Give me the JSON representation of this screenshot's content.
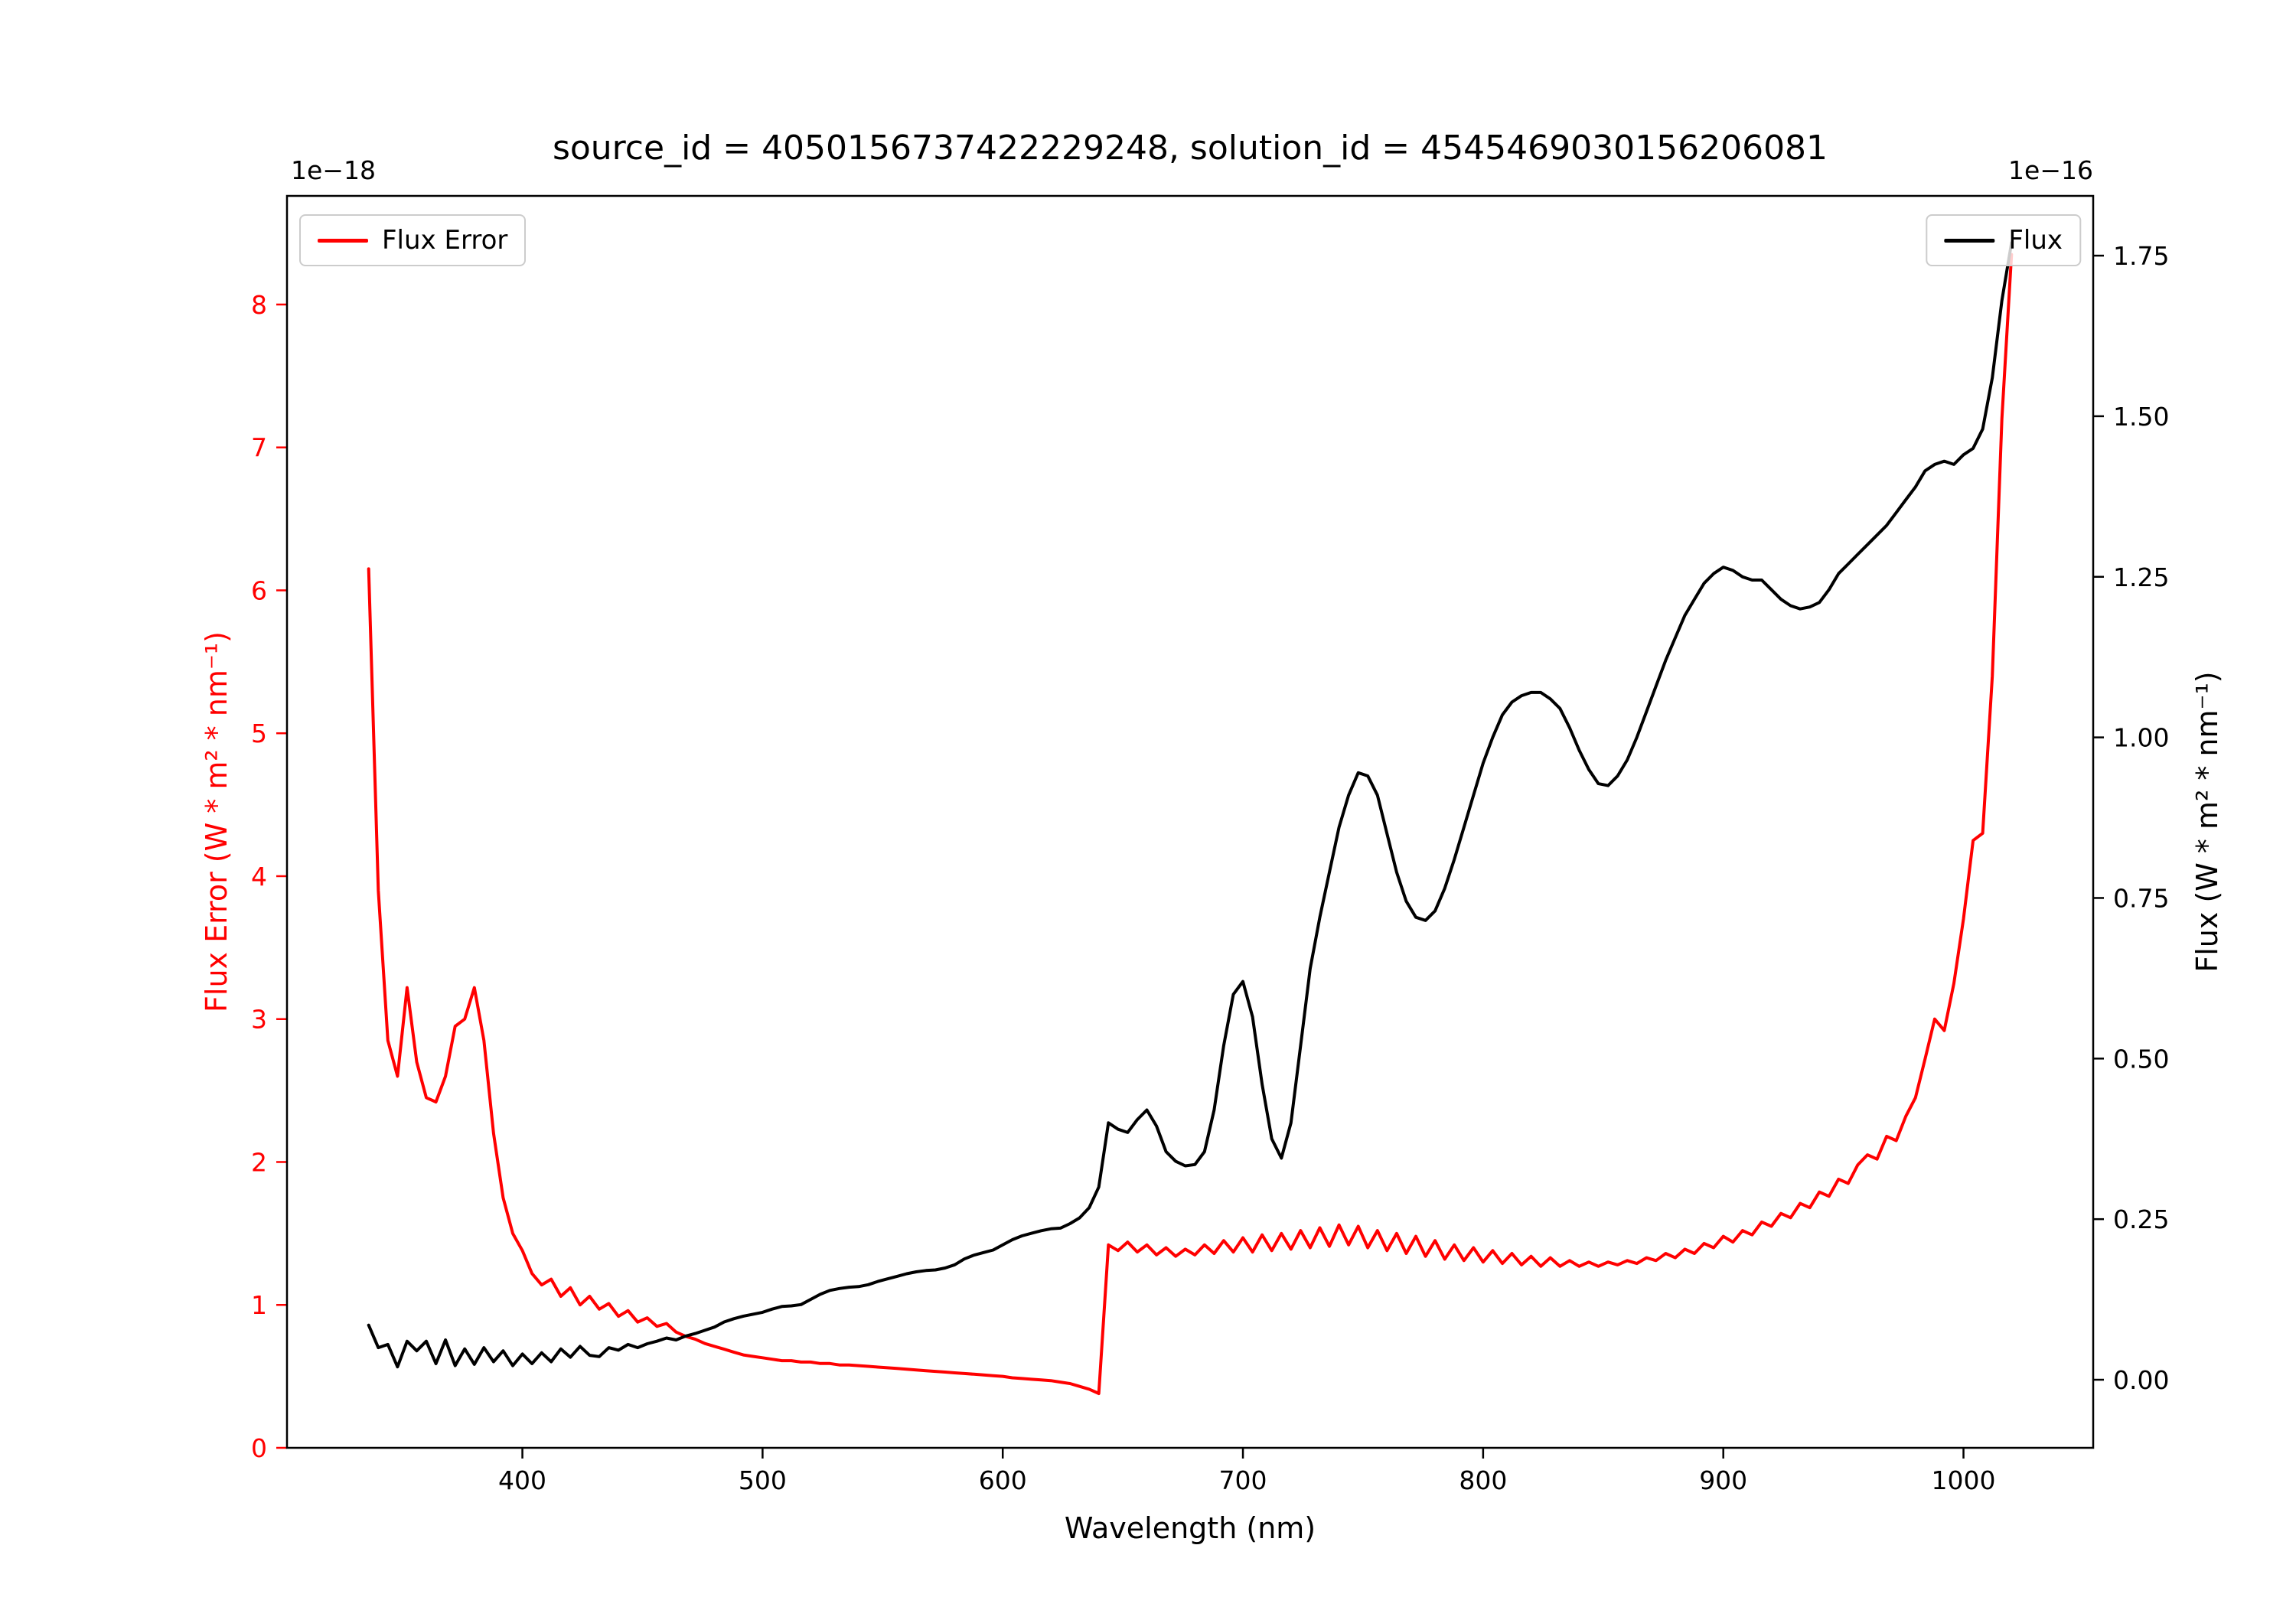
{
  "figure": {
    "title": "source_id = 4050156737422229248, solution_id = 4545469030156206081",
    "xlabel": "Wavelength (nm)",
    "y_left_label": "Flux Error (W * m² * nm⁻¹)",
    "y_right_label": "Flux (W * m² * nm⁻¹)",
    "offset_left": "1e−18",
    "offset_right": "1e−16",
    "legend_left": "Flux Error",
    "legend_right": "Flux"
  },
  "colors": {
    "flux_error": "#ff0000",
    "flux": "#000000",
    "spine": "#000000",
    "legend_border": "#cccccc"
  },
  "chart_data": {
    "type": "line",
    "title": "source_id = 4050156737422229248, solution_id = 4545469030156206081",
    "xlabel": "Wavelength (nm)",
    "legend_position": {
      "flux_error": "upper left",
      "flux": "upper right"
    },
    "grid": false,
    "x_axis": {
      "range": [
        302,
        1054
      ],
      "tick_values": [
        400,
        500,
        600,
        700,
        800,
        900,
        1000
      ],
      "tick_labels": [
        "400",
        "500",
        "600",
        "700",
        "800",
        "900",
        "1000"
      ]
    },
    "y_left": {
      "label": "Flux Error (W * m² * nm⁻¹)",
      "scale_note": "1e−18",
      "color": "#ff0000",
      "range": [
        0,
        8.76
      ],
      "tick_values": [
        0,
        1,
        2,
        3,
        4,
        5,
        6,
        7,
        8
      ],
      "tick_labels": [
        "0",
        "1",
        "2",
        "3",
        "4",
        "5",
        "6",
        "7",
        "8"
      ]
    },
    "y_right": {
      "label": "Flux (W * m² * nm⁻¹)",
      "scale_note": "1e−16",
      "color": "#000000",
      "range": [
        -0.106,
        1.843
      ],
      "tick_values": [
        0,
        0.25,
        0.5,
        0.75,
        1.0,
        1.25,
        1.5,
        1.75
      ],
      "tick_labels": [
        "0.00",
        "0.25",
        "0.50",
        "0.75",
        "1.00",
        "1.25",
        "1.50",
        "1.75"
      ]
    },
    "x": [
      336,
      340,
      344,
      348,
      352,
      356,
      360,
      364,
      368,
      372,
      376,
      380,
      384,
      388,
      392,
      396,
      400,
      404,
      408,
      412,
      416,
      420,
      424,
      428,
      432,
      436,
      440,
      444,
      448,
      452,
      456,
      460,
      464,
      468,
      472,
      476,
      480,
      484,
      488,
      492,
      496,
      500,
      504,
      508,
      512,
      516,
      520,
      524,
      528,
      532,
      536,
      540,
      544,
      548,
      552,
      556,
      560,
      564,
      568,
      572,
      576,
      580,
      584,
      588,
      592,
      596,
      600,
      604,
      608,
      612,
      616,
      620,
      624,
      628,
      632,
      636,
      640,
      644,
      648,
      652,
      656,
      660,
      664,
      668,
      672,
      676,
      680,
      684,
      688,
      692,
      696,
      700,
      704,
      708,
      712,
      716,
      720,
      724,
      728,
      732,
      736,
      740,
      744,
      748,
      752,
      756,
      760,
      764,
      768,
      772,
      776,
      780,
      784,
      788,
      792,
      796,
      800,
      804,
      808,
      812,
      816,
      820,
      824,
      828,
      832,
      836,
      840,
      844,
      848,
      852,
      856,
      860,
      864,
      868,
      872,
      876,
      880,
      884,
      888,
      892,
      896,
      900,
      904,
      908,
      912,
      916,
      920,
      924,
      928,
      932,
      936,
      940,
      944,
      948,
      952,
      956,
      960,
      964,
      968,
      972,
      976,
      980,
      984,
      988,
      992,
      996,
      1000,
      1004,
      1008,
      1012,
      1016,
      1020
    ],
    "series": [
      {
        "name": "Flux Error",
        "axis": "left",
        "color": "#ff0000",
        "unit": "1e-18 W * m^2 * nm^-1",
        "values": [
          6.15,
          3.9,
          2.85,
          2.6,
          3.22,
          2.7,
          2.45,
          2.42,
          2.6,
          2.95,
          3.0,
          3.22,
          2.85,
          2.2,
          1.75,
          1.5,
          1.38,
          1.22,
          1.14,
          1.18,
          1.06,
          1.12,
          1.0,
          1.06,
          0.97,
          1.01,
          0.92,
          0.96,
          0.88,
          0.91,
          0.85,
          0.87,
          0.81,
          0.78,
          0.76,
          0.73,
          0.71,
          0.69,
          0.67,
          0.65,
          0.64,
          0.63,
          0.62,
          0.61,
          0.61,
          0.6,
          0.6,
          0.59,
          0.59,
          0.58,
          0.58,
          0.575,
          0.57,
          0.565,
          0.56,
          0.555,
          0.55,
          0.545,
          0.54,
          0.535,
          0.53,
          0.525,
          0.52,
          0.515,
          0.51,
          0.505,
          0.5,
          0.49,
          0.485,
          0.48,
          0.475,
          0.47,
          0.46,
          0.45,
          0.43,
          0.41,
          0.38,
          1.42,
          1.38,
          1.44,
          1.37,
          1.42,
          1.35,
          1.4,
          1.34,
          1.39,
          1.35,
          1.42,
          1.36,
          1.45,
          1.37,
          1.47,
          1.37,
          1.49,
          1.38,
          1.5,
          1.39,
          1.52,
          1.4,
          1.54,
          1.41,
          1.56,
          1.42,
          1.55,
          1.4,
          1.52,
          1.38,
          1.5,
          1.36,
          1.48,
          1.34,
          1.45,
          1.32,
          1.42,
          1.31,
          1.4,
          1.3,
          1.38,
          1.29,
          1.36,
          1.28,
          1.34,
          1.27,
          1.33,
          1.27,
          1.31,
          1.27,
          1.3,
          1.27,
          1.3,
          1.28,
          1.31,
          1.29,
          1.33,
          1.31,
          1.36,
          1.33,
          1.39,
          1.36,
          1.43,
          1.4,
          1.48,
          1.44,
          1.52,
          1.49,
          1.58,
          1.55,
          1.64,
          1.61,
          1.71,
          1.68,
          1.79,
          1.76,
          1.88,
          1.85,
          1.98,
          2.05,
          2.02,
          2.18,
          2.15,
          2.32,
          2.45,
          2.72,
          3.0,
          2.92,
          3.25,
          3.7,
          4.25,
          4.3,
          5.4,
          7.2,
          8.35
        ]
      },
      {
        "name": "Flux",
        "axis": "right",
        "color": "#000000",
        "unit": "1e-16 W * m^2 * nm^-1",
        "values": [
          0.085,
          0.05,
          0.055,
          0.02,
          0.06,
          0.045,
          0.06,
          0.025,
          0.062,
          0.022,
          0.048,
          0.024,
          0.05,
          0.028,
          0.045,
          0.022,
          0.04,
          0.025,
          0.042,
          0.028,
          0.048,
          0.035,
          0.052,
          0.038,
          0.036,
          0.05,
          0.046,
          0.055,
          0.05,
          0.056,
          0.06,
          0.065,
          0.062,
          0.068,
          0.072,
          0.077,
          0.082,
          0.09,
          0.095,
          0.099,
          0.102,
          0.105,
          0.11,
          0.114,
          0.115,
          0.117,
          0.125,
          0.133,
          0.139,
          0.142,
          0.144,
          0.145,
          0.148,
          0.153,
          0.157,
          0.161,
          0.165,
          0.168,
          0.17,
          0.171,
          0.174,
          0.179,
          0.188,
          0.194,
          0.198,
          0.202,
          0.21,
          0.218,
          0.224,
          0.228,
          0.232,
          0.235,
          0.236,
          0.243,
          0.252,
          0.268,
          0.3,
          0.4,
          0.39,
          0.385,
          0.405,
          0.42,
          0.395,
          0.355,
          0.34,
          0.333,
          0.335,
          0.355,
          0.42,
          0.52,
          0.6,
          0.62,
          0.565,
          0.46,
          0.375,
          0.345,
          0.4,
          0.52,
          0.64,
          0.72,
          0.79,
          0.86,
          0.91,
          0.945,
          0.94,
          0.91,
          0.85,
          0.79,
          0.745,
          0.72,
          0.715,
          0.73,
          0.765,
          0.81,
          0.86,
          0.91,
          0.96,
          1.0,
          1.035,
          1.055,
          1.065,
          1.07,
          1.07,
          1.06,
          1.045,
          1.015,
          0.98,
          0.95,
          0.928,
          0.925,
          0.94,
          0.965,
          1.0,
          1.04,
          1.08,
          1.12,
          1.155,
          1.19,
          1.215,
          1.24,
          1.255,
          1.265,
          1.26,
          1.25,
          1.245,
          1.245,
          1.23,
          1.215,
          1.205,
          1.2,
          1.203,
          1.21,
          1.23,
          1.255,
          1.27,
          1.285,
          1.3,
          1.315,
          1.33,
          1.35,
          1.37,
          1.39,
          1.415,
          1.425,
          1.43,
          1.425,
          1.44,
          1.45,
          1.48,
          1.56,
          1.68,
          1.77
        ]
      }
    ]
  }
}
